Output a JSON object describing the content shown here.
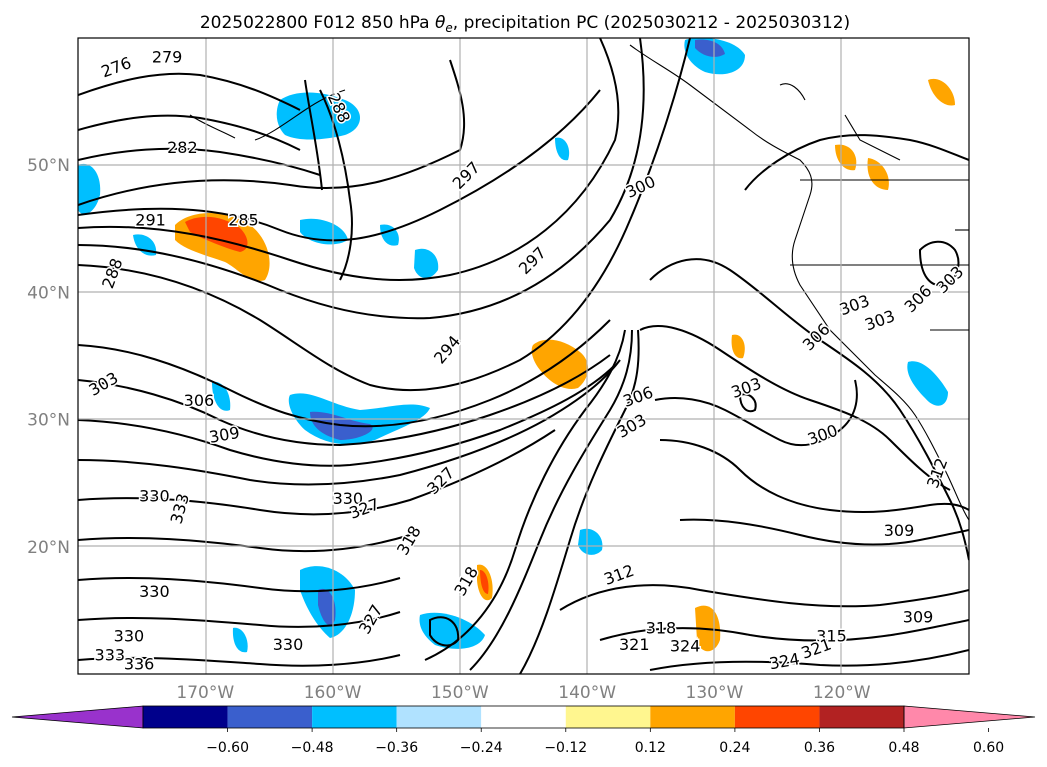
{
  "chart_data": {
    "type": "contour-map",
    "title": "2025022800 F012 850 hPa θe, precipitation PC (2025030212 - 2025030312)",
    "title_parts": {
      "prefix": "2025022800 F012 850 hPa ",
      "symbol": "θ",
      "subscript": "e",
      "suffix": ", precipitation PC (2025030212 - 2025030312)"
    },
    "map_extent": {
      "lon": [
        -180,
        -110
      ],
      "lat": [
        10,
        60
      ]
    },
    "grid": true,
    "x_ticks": [
      {
        "lon": -170,
        "label": "170°W"
      },
      {
        "lon": -160,
        "label": "160°W"
      },
      {
        "lon": -150,
        "label": "150°W"
      },
      {
        "lon": -140,
        "label": "140°W"
      },
      {
        "lon": -130,
        "label": "130°W"
      },
      {
        "lon": -120,
        "label": "120°W"
      }
    ],
    "y_ticks": [
      {
        "lat": 20,
        "label": "20°N"
      },
      {
        "lat": 30,
        "label": "30°N"
      },
      {
        "lat": 40,
        "label": "40°N"
      },
      {
        "lat": 50,
        "label": "50°N"
      }
    ],
    "colorbar": {
      "orientation": "horizontal",
      "extend": "both",
      "levels": [
        -0.6,
        -0.48,
        -0.36,
        -0.24,
        -0.12,
        0.12,
        0.24,
        0.36,
        0.48,
        0.6
      ],
      "tick_labels": [
        "−0.60",
        "−0.48",
        "−0.36",
        "−0.24",
        "−0.12",
        "0.12",
        "0.24",
        "0.36",
        "0.48",
        "0.60"
      ],
      "colors": [
        "#9932cc",
        "#00008b",
        "#3a5fcd",
        "#00bfff",
        "#b0e2ff",
        "#ffffff",
        "#fff68f",
        "#ffa500",
        "#ff4500",
        "#b22222",
        "#ff88aa"
      ]
    },
    "contour_labels": [
      {
        "value": "276",
        "lon": -177.0,
        "lat": 57.7,
        "angle": -20
      },
      {
        "value": "279",
        "lon": -173.0,
        "lat": 58.5,
        "angle": 0
      },
      {
        "value": "288",
        "lon": -159.5,
        "lat": 54.5,
        "angle": 65
      },
      {
        "value": "282",
        "lon": -171.8,
        "lat": 51.4,
        "angle": 0
      },
      {
        "value": "297",
        "lon": -149.5,
        "lat": 49.2,
        "angle": -45
      },
      {
        "value": "291",
        "lon": -174.3,
        "lat": 45.7,
        "angle": 0
      },
      {
        "value": "285",
        "lon": -167.0,
        "lat": 45.7,
        "angle": 0
      },
      {
        "value": "288",
        "lon": -177.3,
        "lat": 41.5,
        "angle": -70
      },
      {
        "value": "300",
        "lon": -135.8,
        "lat": 48.3,
        "angle": -25
      },
      {
        "value": "297",
        "lon": -144.3,
        "lat": 42.5,
        "angle": -45
      },
      {
        "value": "294",
        "lon": -151.0,
        "lat": 35.5,
        "angle": -50
      },
      {
        "value": "303",
        "lon": -178.0,
        "lat": 32.8,
        "angle": -30
      },
      {
        "value": "306",
        "lon": -170.5,
        "lat": 31.5,
        "angle": 0
      },
      {
        "value": "309",
        "lon": -168.5,
        "lat": 28.8,
        "angle": -10
      },
      {
        "value": "303",
        "lon": -117.0,
        "lat": 37.8,
        "angle": -20
      },
      {
        "value": "306",
        "lon": -122.0,
        "lat": 36.5,
        "angle": -45
      },
      {
        "value": "306",
        "lon": -136.0,
        "lat": 31.8,
        "angle": -20
      },
      {
        "value": "303",
        "lon": -127.5,
        "lat": 32.5,
        "angle": -20
      },
      {
        "value": "303",
        "lon": -136.5,
        "lat": 29.5,
        "angle": -30
      },
      {
        "value": "300",
        "lon": -121.5,
        "lat": 28.8,
        "angle": -20
      },
      {
        "value": "330",
        "lon": -174.0,
        "lat": 24.0,
        "angle": 0
      },
      {
        "value": "333",
        "lon": -172.0,
        "lat": 23.0,
        "angle": -75
      },
      {
        "value": "330",
        "lon": -158.8,
        "lat": 23.8,
        "angle": 0
      },
      {
        "value": "327",
        "lon": -157.5,
        "lat": 23.0,
        "angle": -20
      },
      {
        "value": "327",
        "lon": -151.5,
        "lat": 25.2,
        "angle": -45
      },
      {
        "value": "318",
        "lon": -154.0,
        "lat": 20.5,
        "angle": -60
      },
      {
        "value": "318",
        "lon": -149.5,
        "lat": 17.3,
        "angle": -60
      },
      {
        "value": "312",
        "lon": -137.5,
        "lat": 17.8,
        "angle": -20
      },
      {
        "value": "312",
        "lon": -112.5,
        "lat": 25.8,
        "angle": -70
      },
      {
        "value": "309",
        "lon": -115.5,
        "lat": 21.3,
        "angle": 0
      },
      {
        "value": "309",
        "lon": -114.0,
        "lat": 14.5,
        "angle": 0
      },
      {
        "value": "330",
        "lon": -174.0,
        "lat": 16.5,
        "angle": 0
      },
      {
        "value": "330",
        "lon": -176.0,
        "lat": 13.0,
        "angle": 0
      },
      {
        "value": "333",
        "lon": -177.5,
        "lat": 11.5,
        "angle": 0
      },
      {
        "value": "336",
        "lon": -175.2,
        "lat": 10.8,
        "angle": 0
      },
      {
        "value": "330",
        "lon": -163.5,
        "lat": 12.3,
        "angle": 0
      },
      {
        "value": "327",
        "lon": -157.0,
        "lat": 14.3,
        "angle": -60
      },
      {
        "value": "321",
        "lon": -136.3,
        "lat": 12.3,
        "angle": 0
      },
      {
        "value": "318",
        "lon": -134.2,
        "lat": 13.6,
        "angle": 0
      },
      {
        "value": "324",
        "lon": -132.3,
        "lat": 12.2,
        "angle": 0
      },
      {
        "value": "315",
        "lon": -120.8,
        "lat": 13.0,
        "angle": 0
      },
      {
        "value": "321",
        "lon": -122.0,
        "lat": 12.0,
        "angle": -20
      },
      {
        "value": "324",
        "lon": -124.5,
        "lat": 11.0,
        "angle": -10
      },
      {
        "value": "303",
        "lon": -119.0,
        "lat": 39.0,
        "angle": -20
      },
      {
        "value": "306",
        "lon": -114.0,
        "lat": 39.5,
        "angle": -45
      },
      {
        "value": "303",
        "lon": -111.5,
        "lat": 41.0,
        "angle": -45
      }
    ]
  }
}
